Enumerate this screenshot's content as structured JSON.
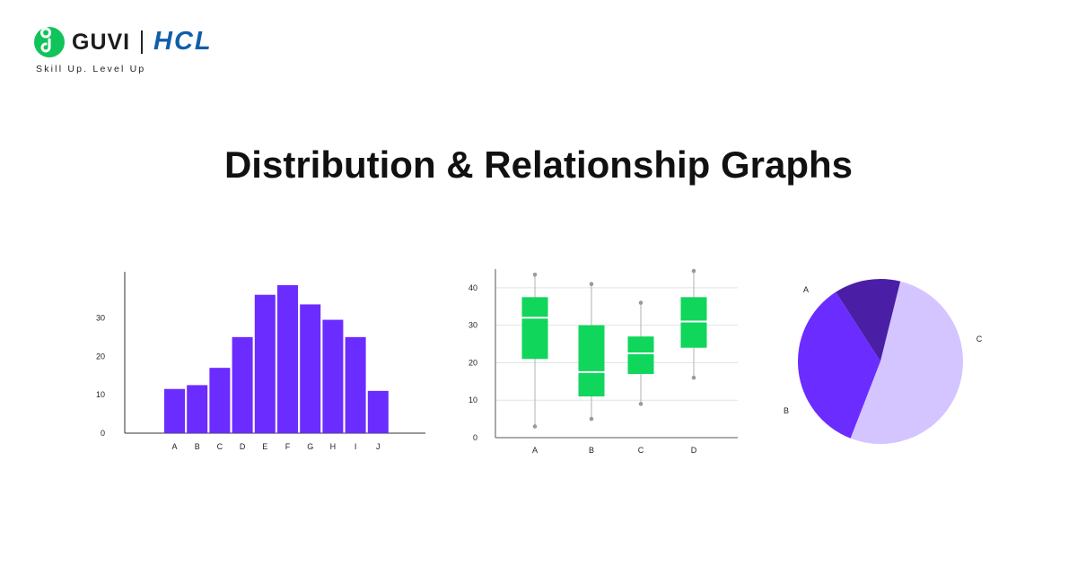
{
  "brand": {
    "logo_text": "GUVI",
    "partner_text": "HCL",
    "tagline": "Skill Up. Level Up",
    "colors": {
      "guvi_green": "#10c35b",
      "hcl_blue": "#0f5fa8"
    }
  },
  "page": {
    "title": "Distribution & Relationship Graphs"
  },
  "chart_data": [
    {
      "type": "bar",
      "categories": [
        "A",
        "B",
        "C",
        "D",
        "E",
        "F",
        "G",
        "H",
        "I",
        "J"
      ],
      "values": [
        11.5,
        12.5,
        17,
        25,
        36,
        38.5,
        33.5,
        29.5,
        25,
        11
      ],
      "yticks": [
        0,
        10,
        20,
        30
      ],
      "ylim": [
        0,
        42
      ],
      "color": "#6b2cff",
      "grid": false
    },
    {
      "type": "box",
      "categories": [
        "A",
        "B",
        "C",
        "D"
      ],
      "boxes": [
        {
          "min": 3,
          "q1": 21,
          "median": 32,
          "q3": 37.5,
          "max": 43.5
        },
        {
          "min": 5,
          "q1": 11,
          "median": 17.5,
          "q3": 30,
          "max": 41
        },
        {
          "min": 9,
          "q1": 17,
          "median": 22.5,
          "q3": 27,
          "max": 36
        },
        {
          "min": 16,
          "q1": 24,
          "median": 31,
          "q3": 37.5,
          "max": 44.5
        }
      ],
      "yticks": [
        0,
        10,
        20,
        30,
        40
      ],
      "ylim": [
        0,
        45
      ],
      "color": "#10d65c",
      "grid": true
    },
    {
      "type": "pie",
      "slices": [
        {
          "label": "A",
          "value": 13,
          "color": "#4a1fa6"
        },
        {
          "label": "B",
          "value": 35,
          "color": "#6b2cff"
        },
        {
          "label": "C",
          "value": 52,
          "color": "#d4c4ff"
        }
      ]
    }
  ]
}
